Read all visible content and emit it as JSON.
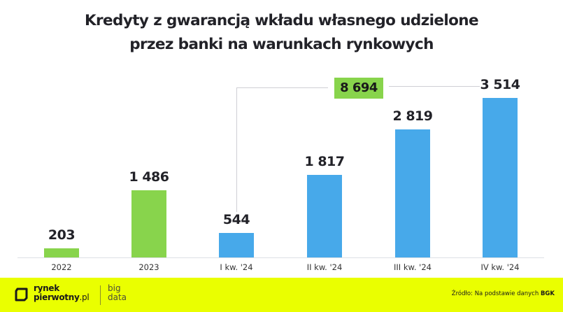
{
  "title": {
    "line1": "Kredyty z gwarancją wkładu własnego udzielone",
    "line2": "przez banki na warunkach rynkowych"
  },
  "colors": {
    "annual_bar": "#88d44c",
    "quarterly_bar": "#47a9ea",
    "total_badge": "#88d44c",
    "footer_bg": "#eaff00"
  },
  "total_annotation": {
    "label": "8 694",
    "spans": [
      "I kw. '24",
      "II kw. '24",
      "III kw. '24",
      "IV kw. '24"
    ]
  },
  "footer": {
    "logo_line1": "rynek",
    "logo_line2_bold": "pierwotny",
    "logo_line2_suffix": ".pl",
    "bigdata_line1": "big",
    "bigdata_line2": "data",
    "source_prefix": "Źródło: Na podstawie danych ",
    "source_bold": "BGK"
  },
  "chart_data": {
    "type": "bar",
    "title": "Kredyty z gwarancją wkładu własnego udzielone przez banki na warunkach rynkowych",
    "xlabel": "",
    "ylabel": "",
    "categories": [
      "2022",
      "2023",
      "I kw. '24",
      "II kw. '24",
      "III kw. '24",
      "IV kw. '24"
    ],
    "values": [
      203,
      1486,
      544,
      1817,
      2819,
      3514
    ],
    "value_labels": [
      "203",
      "1 486",
      "544",
      "1 817",
      "2 819",
      "3 514"
    ],
    "bar_groups": [
      "annual",
      "annual",
      "quarterly",
      "quarterly",
      "quarterly",
      "quarterly"
    ],
    "annotations": [
      {
        "text": "8 694",
        "meaning": "sum of 2024 quarters"
      }
    ],
    "grid": false,
    "legend": null,
    "ylim": [
      0,
      3600
    ],
    "source": "Źródło: Na podstawie danych BGK"
  }
}
